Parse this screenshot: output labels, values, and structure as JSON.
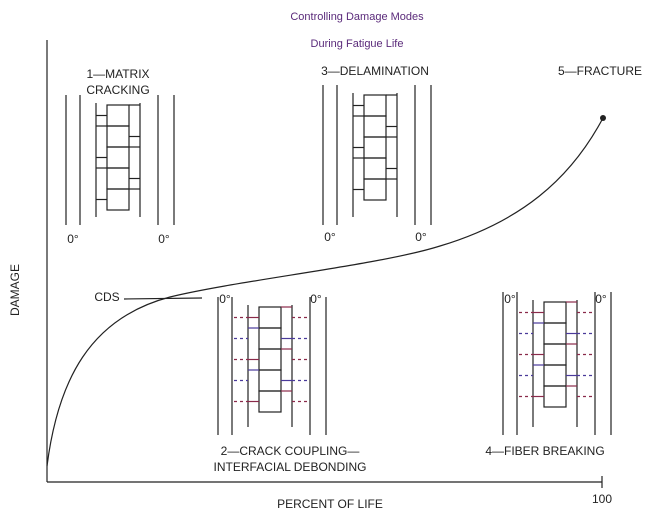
{
  "title": [
    "Controlling Damage Modes",
    "During Fatigue Life"
  ],
  "modes": [
    {
      "label": [
        "1—MATRIX",
        "CRACKING"
      ],
      "plies": [
        "0°",
        "0°"
      ]
    },
    {
      "label": [
        "2—CRACK COUPLING—",
        "INTERFACIAL DEBONDING"
      ],
      "plies": [
        "0°",
        "0°"
      ]
    },
    {
      "label": [
        "3—DELAMINATION"
      ],
      "plies": [
        "0°",
        "0°"
      ]
    },
    {
      "label": [
        "4—FIBER BREAKING"
      ],
      "plies": [
        "0°",
        "0°"
      ]
    },
    {
      "label": [
        "5—FRACTURE"
      ]
    }
  ],
  "cds_label": "CDS",
  "axes": {
    "y_label": "DAMAGE",
    "x_label": "PERCENT OF LIFE",
    "x_end": "100"
  }
}
